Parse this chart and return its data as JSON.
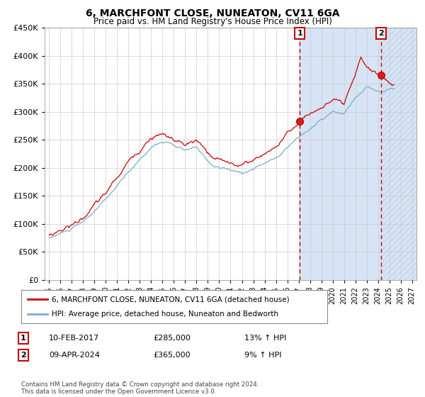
{
  "title": "6, MARCHFONT CLOSE, NUNEATON, CV11 6GA",
  "subtitle": "Price paid vs. HM Land Registry's House Price Index (HPI)",
  "ylim": [
    0,
    450000
  ],
  "yticks": [
    0,
    50000,
    100000,
    150000,
    200000,
    250000,
    300000,
    350000,
    400000,
    450000
  ],
  "xlim_start": 1994.6,
  "xlim_end": 2027.4,
  "red_line_color": "#cc0000",
  "blue_line_color": "#7aadce",
  "vline1_x": 2017.1,
  "vline2_x": 2024.28,
  "vline_color": "#cc0000",
  "shade_color": "#d6e4f5",
  "hatch_color": "#c8d8e8",
  "sale1_label": "1",
  "sale1_date": "10-FEB-2017",
  "sale1_price": "£285,000",
  "sale1_hpi": "13% ↑ HPI",
  "sale2_label": "2",
  "sale2_date": "09-APR-2024",
  "sale2_price": "£365,000",
  "sale2_hpi": "9% ↑ HPI",
  "legend_red": "6, MARCHFONT CLOSE, NUNEATON, CV11 6GA (detached house)",
  "legend_blue": "HPI: Average price, detached house, Nuneaton and Bedworth",
  "footer": "Contains HM Land Registry data © Crown copyright and database right 2024.\nThis data is licensed under the Open Government Licence v3.0.",
  "background_color": "#ffffff",
  "plot_bg_color": "#ffffff",
  "grid_color": "#cccccc"
}
